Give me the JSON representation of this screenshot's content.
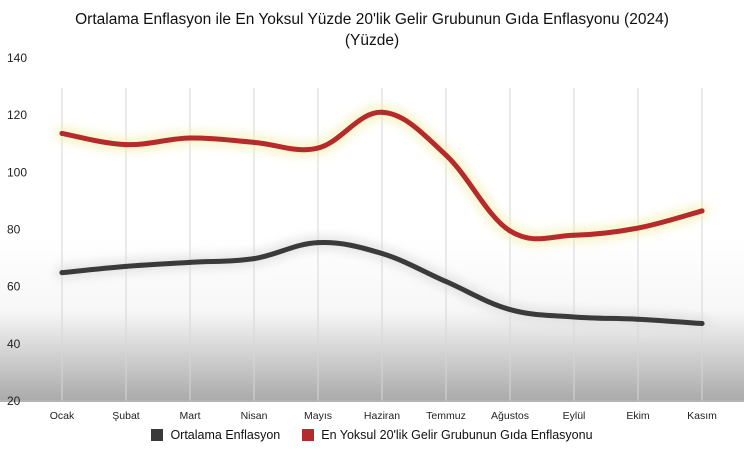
{
  "chart_data": {
    "type": "line",
    "title": "Ortalama Enflasyon ile En Yoksul Yüzde 20'lik Gelir Grubunun Gıda Enflasyonu (2024)",
    "subtitle": "(Yüzde)",
    "categories": [
      "Ocak",
      "Şubat",
      "Mart",
      "Nisan",
      "Mayıs",
      "Haziran",
      "Temmuz",
      "Ağustos",
      "Eylül",
      "Ekim",
      "Kasım"
    ],
    "series": [
      {
        "name": "Ortalama Enflasyon",
        "color": "#3a3a3a",
        "values": [
          64.9,
          67.1,
          68.5,
          69.8,
          75.4,
          71.6,
          61.8,
          52.0,
          49.4,
          48.6,
          47.1
        ]
      },
      {
        "name": "En Yoksul 20'lik Gelir Grubunun Gıda Enflasyonu",
        "color": "#b52a2a",
        "values": [
          113.6,
          109.7,
          112.0,
          110.5,
          108.5,
          121.0,
          106.0,
          79.5,
          78.0,
          80.5,
          86.5
        ]
      }
    ],
    "ylim": [
      20,
      140
    ],
    "yticks": [
      20,
      40,
      60,
      80,
      100,
      120,
      140
    ],
    "grid": "vertical",
    "legend": "bottom"
  }
}
